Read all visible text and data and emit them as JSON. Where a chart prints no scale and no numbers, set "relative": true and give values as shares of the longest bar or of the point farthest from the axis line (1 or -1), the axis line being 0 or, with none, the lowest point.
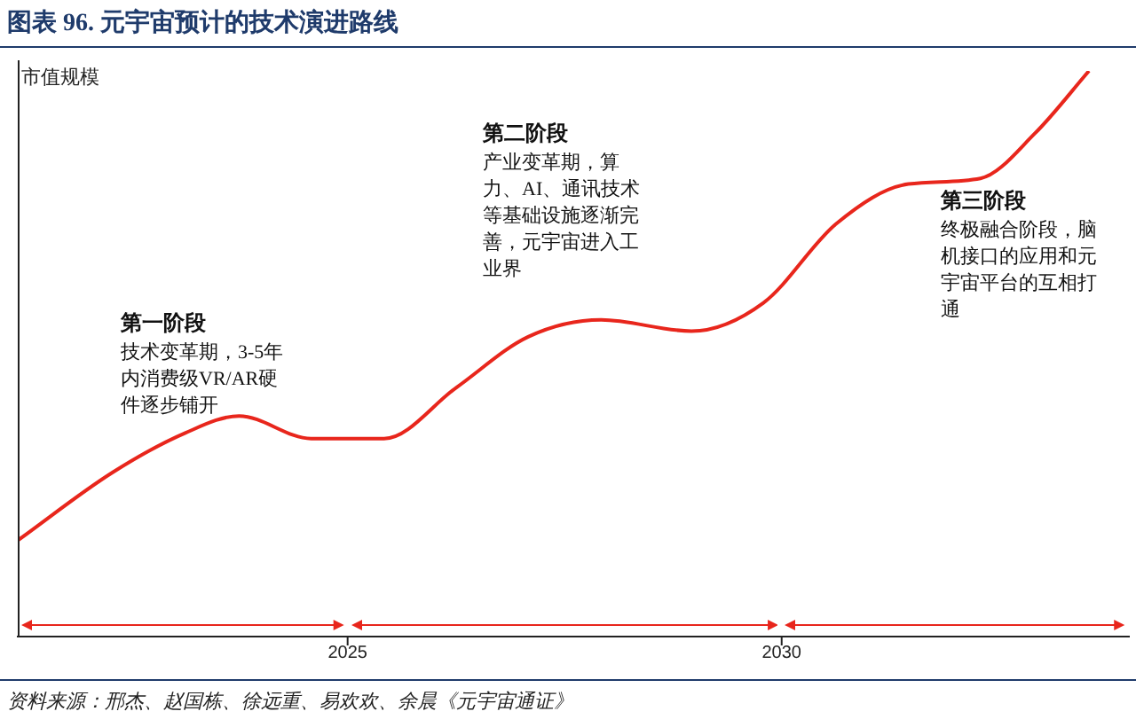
{
  "chart_data": {
    "type": "line",
    "title": "图表 96. 元宇宙预计的技术演进路线",
    "ylabel": "市值规模",
    "relative": true,
    "x": [
      2021.2,
      2022.29,
      2023.13,
      2023.75,
      2024.58,
      2025.42,
      2026.25,
      2027.08,
      2027.92,
      2028.96,
      2029.79,
      2030.63,
      2031.46,
      2032.29,
      2032.92,
      2033.54
    ],
    "series": [
      {
        "color": "#e8261c",
        "values": [
          0.17,
          0.29,
          0.36,
          0.39,
          0.35,
          0.35,
          0.44,
          0.53,
          0.56,
          0.54,
          0.59,
          0.73,
          0.8,
          0.81,
          0.89,
          1
        ]
      }
    ],
    "xlim": [
      2021.2,
      2034
    ],
    "xticks": [
      2025,
      2030
    ],
    "tick_labels": "x",
    "grid": false,
    "legend": false,
    "marker": "none",
    "line_style": "solid",
    "annotations": [
      "第一阶段",
      "技术变革期，3-5年内消费级VR/AR硬件逐步铺开",
      "第二阶段",
      "产业变革期，算力、AI、通讯技术等基础设施逐渐完善，元宇宙进入工业界",
      "第三阶段",
      "终极融合阶段，脑机接口的应用和元宇宙平台的互相打通",
      "资料来源：邢杰、赵国栋、徐远重、易欢欢、余晨《元宇宙通证》"
    ]
  }
}
